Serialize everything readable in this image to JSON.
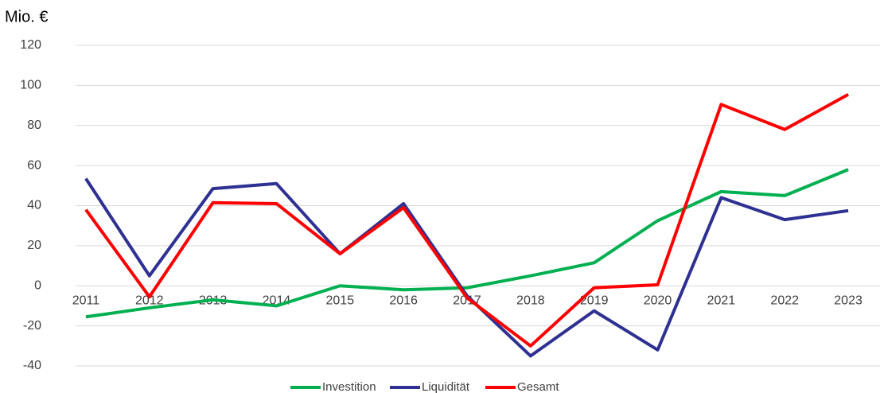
{
  "chart_data": {
    "type": "line",
    "ylabel": "Mio. €",
    "categories": [
      "2011",
      "2012",
      "2013",
      "2014",
      "2015",
      "2016",
      "2017",
      "2018",
      "2019",
      "2020",
      "2021",
      "2022",
      "2023"
    ],
    "series": [
      {
        "name": "Investition",
        "color": "#00b050",
        "values": [
          -15.5,
          -11,
          -7,
          -10,
          0,
          -2,
          -1,
          5,
          11.5,
          32.5,
          47,
          45,
          58
        ]
      },
      {
        "name": "Liquidität",
        "color": "#2e3192",
        "values": [
          53.5,
          5,
          48.5,
          51,
          16,
          41,
          -5,
          -35,
          -12.5,
          -32,
          44,
          33,
          37.5
        ]
      },
      {
        "name": "Gesamt",
        "color": "#ff0000",
        "values": [
          38,
          -5.5,
          41.5,
          41,
          16,
          39,
          -6,
          -30,
          -1,
          0.5,
          90.5,
          78,
          95.5
        ]
      }
    ],
    "ylim": [
      -40,
      120
    ],
    "yticks": [
      -40,
      -20,
      0,
      20,
      40,
      60,
      80,
      100,
      120
    ],
    "grid": true,
    "legend": "bottom"
  }
}
